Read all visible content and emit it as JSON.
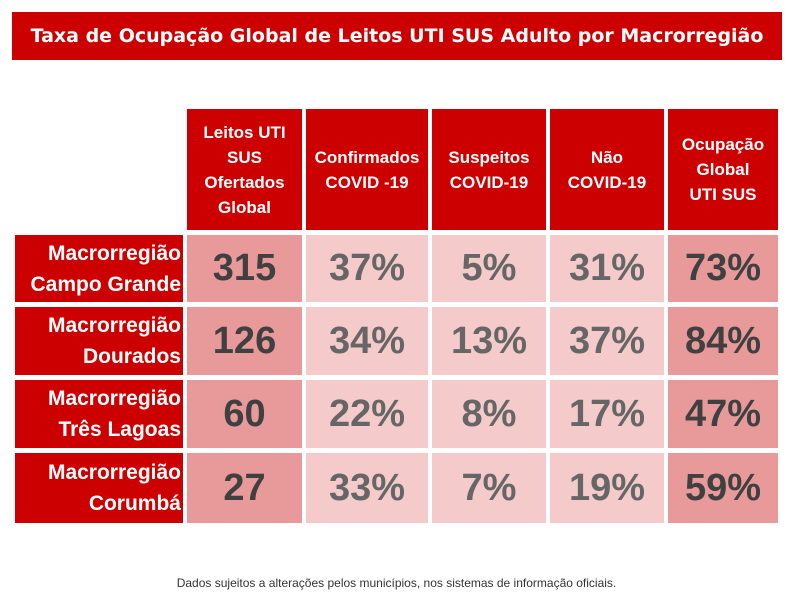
{
  "title": "Taxa de Ocupação Global de Leitos UTI SUS Adulto por Macrorregião",
  "footer": "Dados sujeitos a alterações pelos municípios, nos sistemas de informação oficiais.",
  "colors": {
    "header": "#cc0000",
    "cell_dark": "#e89a9b",
    "cell_light": "#f4caca"
  },
  "chart_data": {
    "type": "table",
    "title": "Taxa de Ocupação Global de Leitos UTI SUS Adulto por Macrorregião",
    "columns": [
      "Leitos UTI\nSUS\nOfertados\nGlobal",
      "Confirmados\nCOVID -19",
      "Suspeitos\nCOVID-19",
      "Não\nCOVID-19",
      "Ocupação\nGlobal\nUTI SUS"
    ],
    "rows": [
      {
        "label": "Macrorregião\nCampo Grande",
        "values": [
          "315",
          "37%",
          "5%",
          "31%",
          "73%"
        ]
      },
      {
        "label": "Macrorregião\nDourados",
        "values": [
          "126",
          "34%",
          "13%",
          "37%",
          "84%"
        ]
      },
      {
        "label": "Macrorregião\nTrês Lagoas",
        "values": [
          "60",
          "22%",
          "8%",
          "17%",
          "47%"
        ]
      },
      {
        "label": "Macrorregião\nCorumbá",
        "values": [
          "27",
          "33%",
          "7%",
          "19%",
          "59%"
        ]
      }
    ]
  }
}
